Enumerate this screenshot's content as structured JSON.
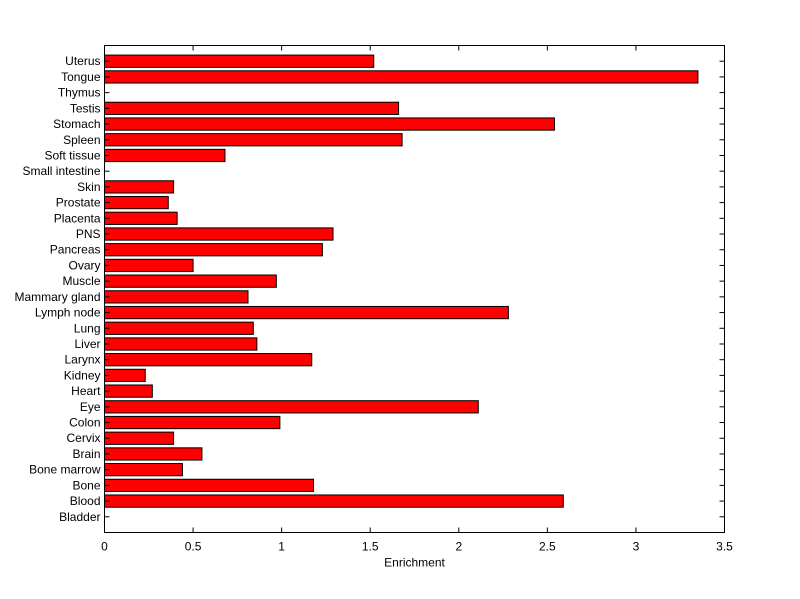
{
  "chart_data": {
    "type": "bar",
    "orientation": "horizontal",
    "title": "",
    "xlabel": "Enrichment",
    "ylabel": "",
    "xlim": [
      0,
      3.5
    ],
    "xticks": [
      "0",
      "0.5",
      "1",
      "1.5",
      "2",
      "2.5",
      "3",
      "3.5"
    ],
    "grid": false,
    "bar_color": "#ff0000",
    "categories": [
      "Bladder",
      "Blood",
      "Bone",
      "Bone marrow",
      "Brain",
      "Cervix",
      "Colon",
      "Eye",
      "Heart",
      "Kidney",
      "Larynx",
      "Liver",
      "Lung",
      "Lymph node",
      "Mammary gland",
      "Muscle",
      "Ovary",
      "Pancreas",
      "PNS",
      "Placenta",
      "Prostate",
      "Skin",
      "Small intestine",
      "Soft tissue",
      "Spleen",
      "Stomach",
      "Testis",
      "Thymus",
      "Tongue",
      "Uterus"
    ],
    "values": [
      0,
      2.59,
      1.18,
      0.44,
      0.55,
      0.39,
      0.99,
      2.11,
      0.27,
      0.23,
      1.17,
      0.86,
      0.84,
      2.28,
      0.81,
      0.97,
      0.5,
      1.23,
      1.29,
      0.41,
      0.36,
      0.39,
      0,
      0.68,
      1.68,
      2.54,
      1.66,
      0,
      3.35,
      1.52
    ]
  }
}
